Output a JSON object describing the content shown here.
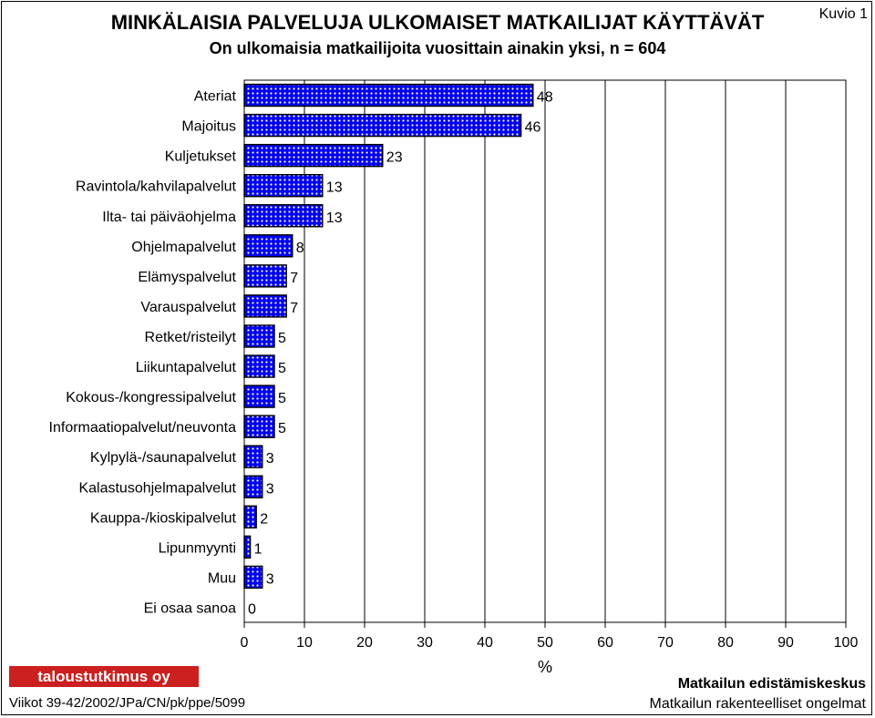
{
  "header": {
    "title": "MINKÄLAISIA PALVELUJA ULKOMAISET MATKAILIJAT KÄYTTÄVÄT",
    "subtitle": "On ulkomaisia matkailijoita vuosittain ainakin yksi, n = 604",
    "figure_label": "Kuvio 1"
  },
  "chart_data": {
    "type": "bar",
    "orientation": "horizontal",
    "title": "MINKÄLAISIA PALVELUJA ULKOMAISET MATKAILIJAT KÄYTTÄVÄT",
    "subtitle": "On ulkomaisia matkailijoita vuosittain ainakin yksi, n = 604",
    "categories": [
      "Ateriat",
      "Majoitus",
      "Kuljetukset",
      "Ravintola/kahvilapalvelut",
      "Ilta- tai päiväohjelma",
      "Ohjelmapalvelut",
      "Elämyspalvelut",
      "Varauspalvelut",
      "Retket/risteilyt",
      "Liikuntapalvelut",
      "Kokous-/kongressipalvelut",
      "Informaatiopalvelut/neuvonta",
      "Kylpylä-/saunapalvelut",
      "Kalastusohjelmapalvelut",
      "Kauppa-/kioskipalvelut",
      "Lipunmyynti",
      "Muu",
      "Ei osaa sanoa"
    ],
    "values": [
      48,
      46,
      23,
      13,
      13,
      8,
      7,
      7,
      5,
      5,
      5,
      5,
      3,
      3,
      2,
      1,
      3,
      0
    ],
    "value_labels": [
      "48",
      "46",
      "23",
      "13",
      "13",
      "8",
      "7",
      "7",
      "5",
      "5",
      "5",
      "5",
      "3",
      "3",
      "2",
      "1",
      "3",
      "0"
    ],
    "xlabel": "%",
    "ylabel": "",
    "xlim": [
      0,
      100
    ],
    "xticks": [
      "0",
      "10",
      "20",
      "30",
      "40",
      "50",
      "60",
      "70",
      "80",
      "90",
      "100"
    ],
    "grid": true,
    "legend": "none",
    "bar_color": "#0000ee",
    "bar_pattern": "white dots on blue"
  },
  "footer": {
    "logo_text": "taloustutkimus oy",
    "reference": "Viikot 39-42/2002/JPa/CN/pk/ppe/5099",
    "organization": "Matkailun edistämiskeskus",
    "report_title": "Matkailun rakenteelliset ongelmat"
  }
}
